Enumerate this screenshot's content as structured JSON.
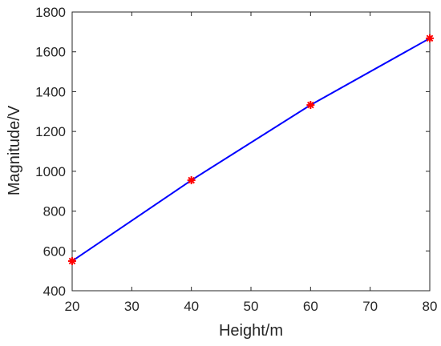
{
  "chart_data": {
    "type": "line",
    "title": "",
    "xlabel": "Height/m",
    "ylabel": "Magnitude/V",
    "xlim": [
      20,
      80
    ],
    "ylim": [
      400,
      1800
    ],
    "xticks": [
      20,
      30,
      40,
      50,
      60,
      70,
      80
    ],
    "yticks": [
      400,
      600,
      800,
      1000,
      1200,
      1400,
      1600,
      1800
    ],
    "grid": false,
    "series": [
      {
        "x": [
          20,
          40,
          60,
          80
        ],
        "y": [
          549,
          955,
          1333,
          1668
        ],
        "line_color": "#0000ff",
        "marker": "asterisk",
        "marker_color": "#ff0000"
      }
    ]
  }
}
